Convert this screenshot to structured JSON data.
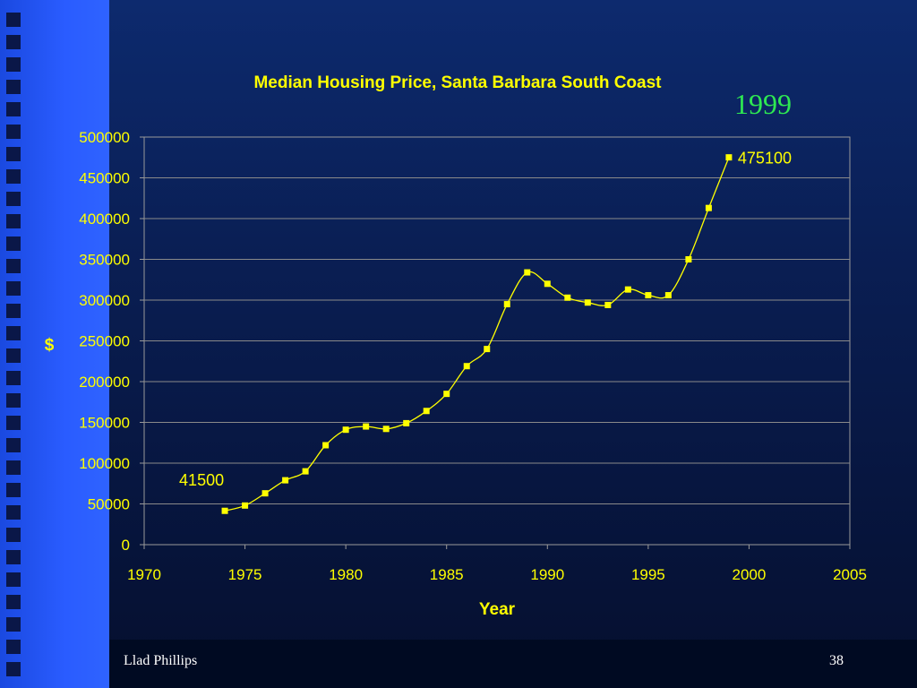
{
  "slide": {
    "footer_left": "Llad Phillips",
    "footer_right": "38",
    "annotation": "1999",
    "sidebar_squares": 30
  },
  "chart_data": {
    "type": "line",
    "title": "Median Housing Price, Santa Barbara South Coast",
    "xlabel": "Year",
    "ylabel": "$",
    "xlim": [
      1970,
      2005
    ],
    "ylim": [
      0,
      500000
    ],
    "x_ticks": [
      1970,
      1975,
      1980,
      1985,
      1990,
      1995,
      2000,
      2005
    ],
    "y_ticks": [
      0,
      50000,
      100000,
      150000,
      200000,
      250000,
      300000,
      350000,
      400000,
      450000,
      500000
    ],
    "grid": "horizontal",
    "colors": {
      "line": "#ffff00",
      "marker": "#ffff00",
      "plot_border": "#9a9a9a",
      "grid": "#8a8a8a"
    },
    "series": [
      {
        "x": [
          1974,
          1975,
          1976,
          1977,
          1978,
          1979,
          1980,
          1981,
          1982,
          1983,
          1984,
          1985,
          1986,
          1987,
          1988,
          1989,
          1990,
          1991,
          1992,
          1993,
          1994,
          1995,
          1996,
          1997,
          1998,
          1999
        ],
        "y": [
          41500,
          48000,
          63000,
          79000,
          90000,
          122000,
          141000,
          145000,
          142000,
          149000,
          164000,
          185000,
          219000,
          240000,
          295000,
          334000,
          320000,
          303000,
          297000,
          294000,
          313000,
          306000,
          306000,
          350000,
          413000,
          475100
        ]
      }
    ],
    "data_labels": [
      {
        "x": 1974,
        "y": 41500,
        "text": "41500"
      },
      {
        "x": 1999,
        "y": 475100,
        "text": "475100"
      }
    ]
  }
}
